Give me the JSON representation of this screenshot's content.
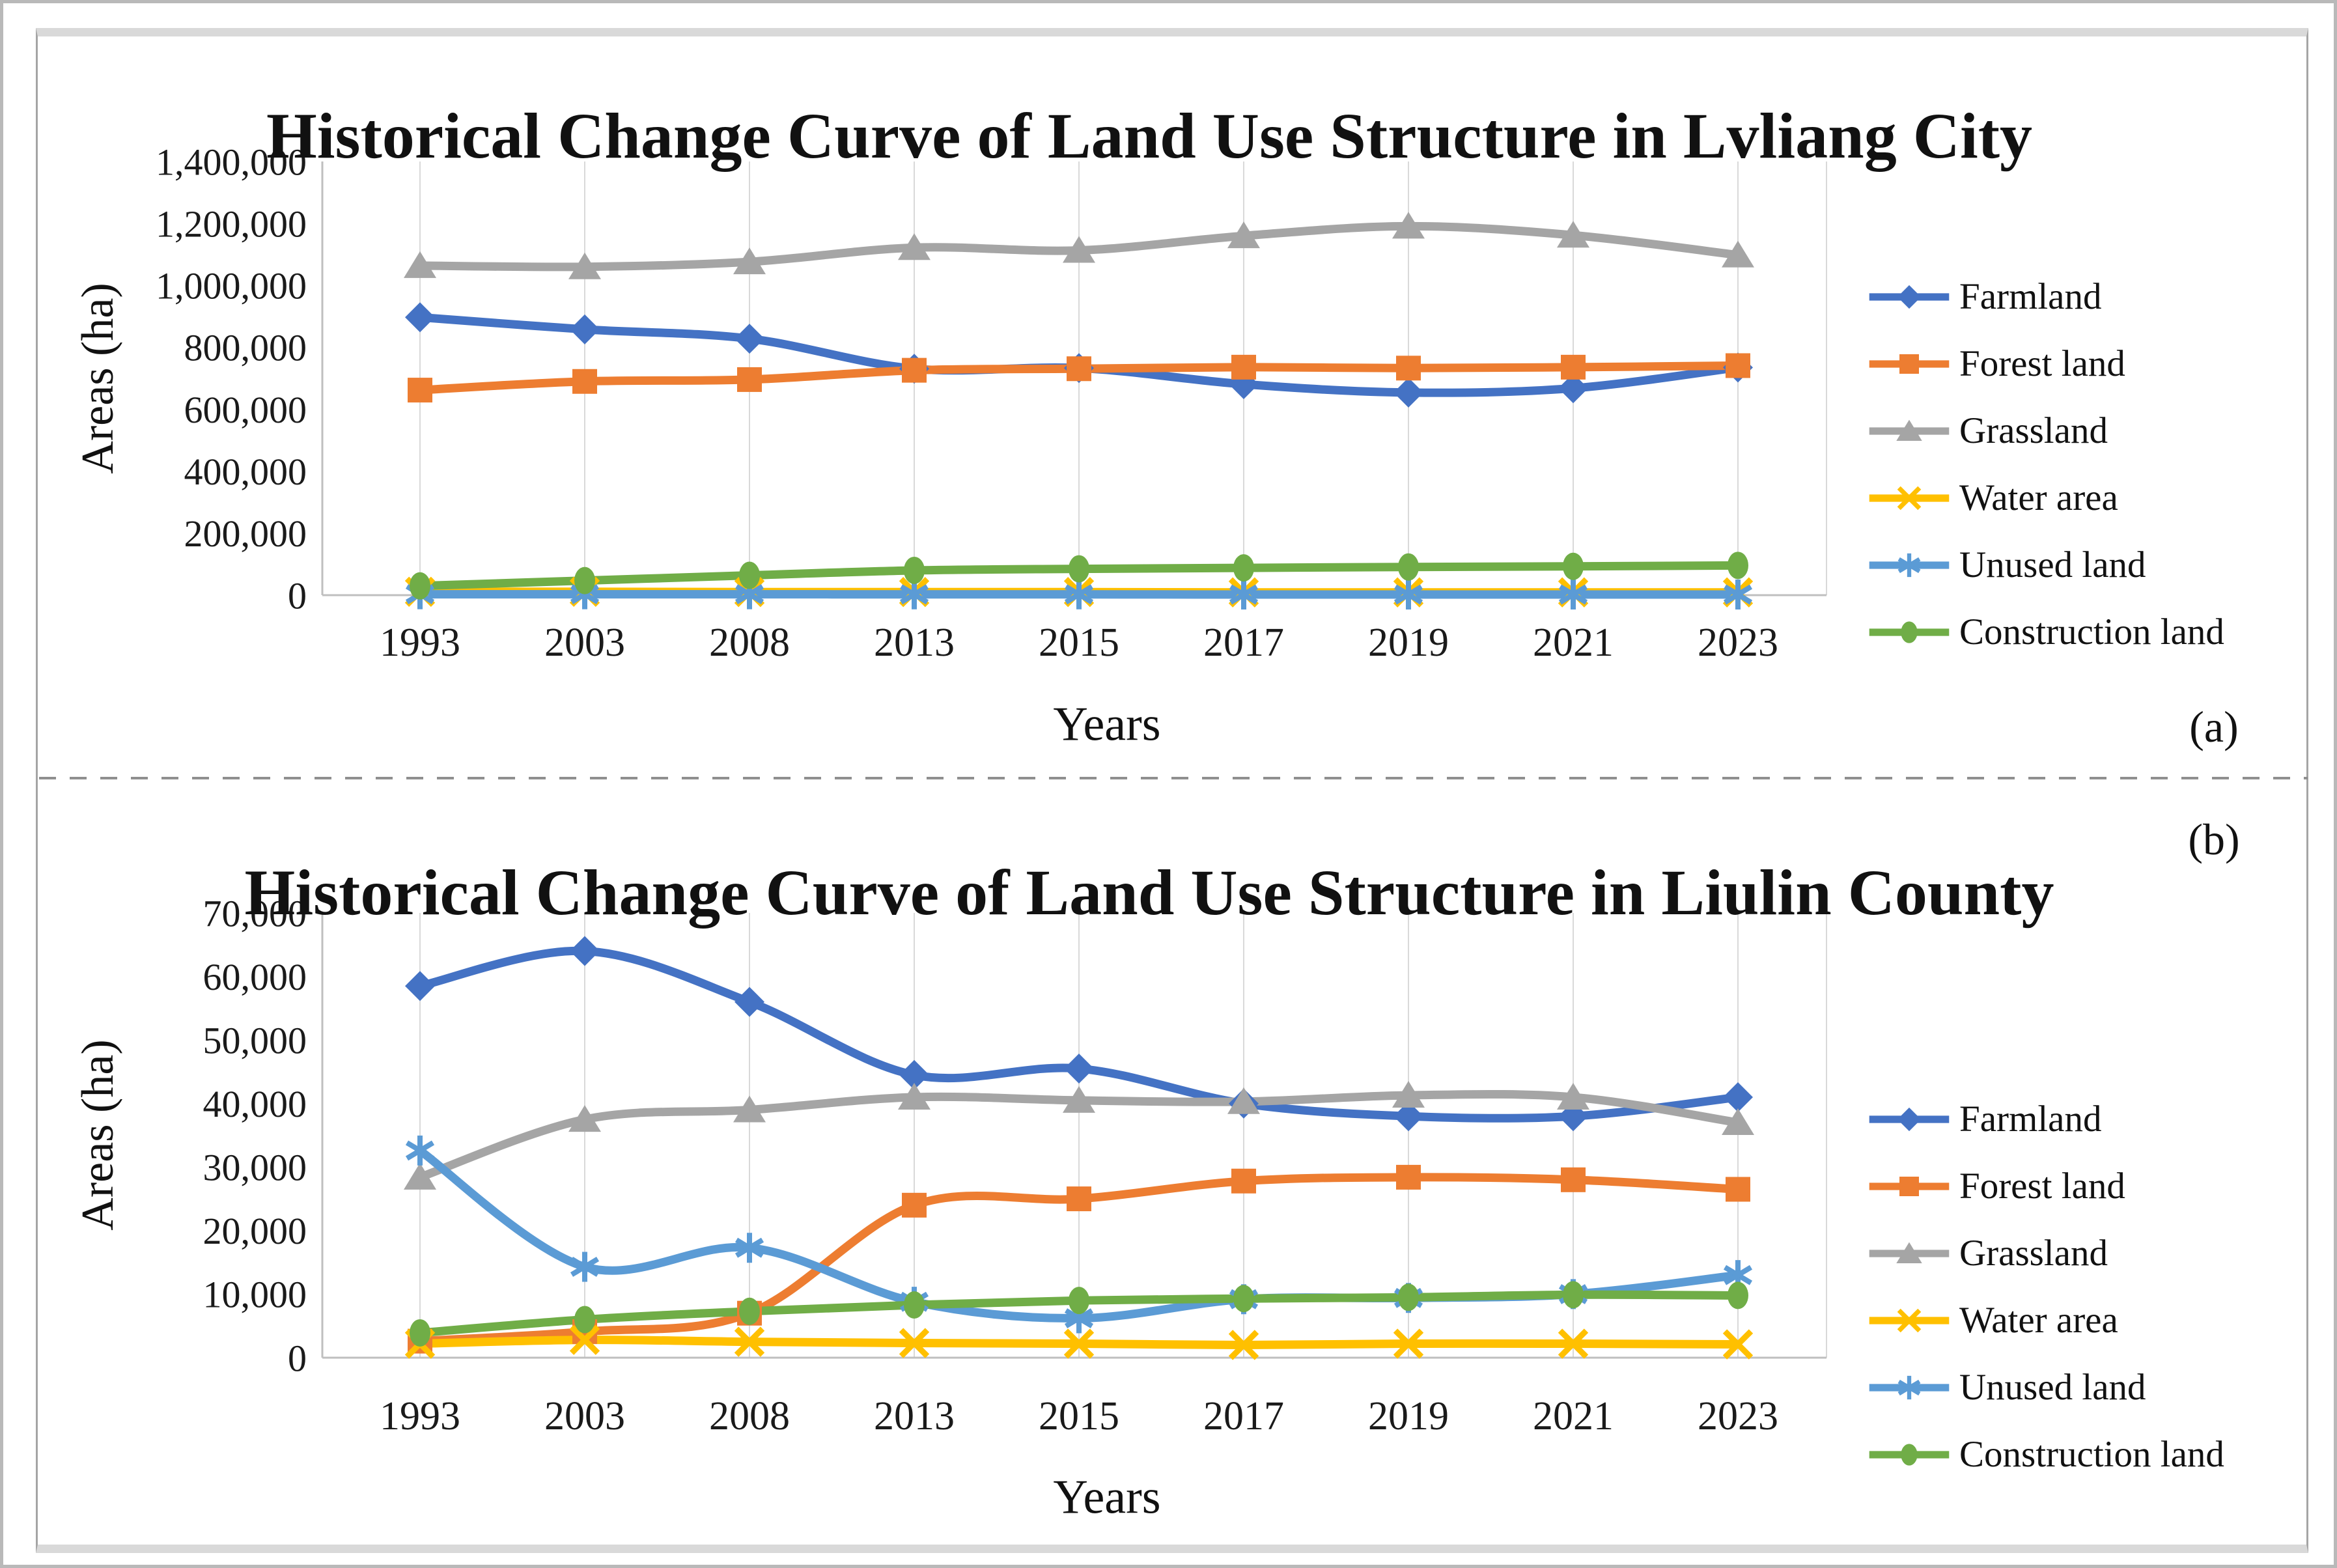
{
  "figure": {
    "panel_a_tag": "(a)",
    "panel_b_tag": "(b)"
  },
  "palette": {
    "farmland_blue": "#4472C4",
    "forest_orange": "#ED7D31",
    "grassland_gray": "#A5A5A5",
    "water_gold": "#FFC000",
    "unused_lightblue": "#5B9BD5",
    "construction_green": "#70AD47",
    "gridline_gray": "#D9D9D9",
    "axis_gray": "#BFBFBF"
  },
  "chart_data": [
    {
      "panel": "(a)",
      "type": "line",
      "title": "Historical Change Curve of Land Use Structure in Lvliang City",
      "xlabel": "Years",
      "ylabel": "Areas (ha)",
      "categories": [
        "1993",
        "2003",
        "2008",
        "2013",
        "2015",
        "2017",
        "2019",
        "2021",
        "2023"
      ],
      "ylim": [
        0,
        1400000
      ],
      "y_tick_interval": 200000,
      "y_tick_labels": [
        "0",
        "200,000",
        "400,000",
        "600,000",
        "800,000",
        "1,000,000",
        "1,200,000",
        "1,400,000"
      ],
      "grid": "vertical-only",
      "legend_position": "right",
      "smooth_lines": true,
      "series": [
        {
          "name": "Farmland",
          "color": "#4472C4",
          "marker": "diamond",
          "values": [
            897000,
            858000,
            828000,
            731000,
            733000,
            681000,
            654000,
            668000,
            735000
          ]
        },
        {
          "name": "Forest land",
          "color": "#ED7D31",
          "marker": "square",
          "values": [
            662000,
            690000,
            696000,
            726000,
            731000,
            736000,
            733000,
            736000,
            741000
          ]
        },
        {
          "name": "Grassland",
          "color": "#A5A5A5",
          "marker": "triangle",
          "values": [
            1064000,
            1060000,
            1076000,
            1122000,
            1113000,
            1160000,
            1191000,
            1162000,
            1098000
          ]
        },
        {
          "name": "Water area",
          "color": "#FFC000",
          "marker": "x",
          "values": [
            11000,
            11000,
            10000,
            10000,
            10000,
            9000,
            9000,
            9000,
            9000
          ]
        },
        {
          "name": "Unused land",
          "color": "#5B9BD5",
          "marker": "asterisk",
          "values": [
            3000,
            3000,
            3000,
            2500,
            2500,
            2000,
            2000,
            2000,
            2000
          ]
        },
        {
          "name": "Construction land",
          "color": "#70AD47",
          "marker": "circle",
          "values": [
            30000,
            47000,
            64000,
            80000,
            85000,
            88000,
            91000,
            93000,
            96000
          ]
        }
      ]
    },
    {
      "panel": "(b)",
      "type": "line",
      "title": "Historical Change Curve of Land Use Structure in Liulin County",
      "xlabel": "Years",
      "ylabel": "Areas (ha)",
      "categories": [
        "1993",
        "2003",
        "2008",
        "2013",
        "2015",
        "2017",
        "2019",
        "2021",
        "2023"
      ],
      "ylim": [
        0,
        70000
      ],
      "y_tick_interval": 10000,
      "y_tick_labels": [
        "0",
        "10,000",
        "20,000",
        "30,000",
        "40,000",
        "50,000",
        "60,000",
        "70,000"
      ],
      "grid": "vertical-only",
      "legend_position": "right",
      "smooth_lines": true,
      "series": [
        {
          "name": "Farmland",
          "color": "#4472C4",
          "marker": "diamond",
          "values": [
            58500,
            64000,
            56000,
            44500,
            45500,
            40000,
            38000,
            38000,
            41000
          ]
        },
        {
          "name": "Forest land",
          "color": "#ED7D31",
          "marker": "square",
          "values": [
            2600,
            4100,
            7000,
            24000,
            25000,
            27800,
            28400,
            28000,
            26500
          ]
        },
        {
          "name": "Grassland",
          "color": "#A5A5A5",
          "marker": "triangle",
          "values": [
            28400,
            37500,
            39000,
            41000,
            40500,
            40300,
            41300,
            41000,
            37000
          ]
        },
        {
          "name": "Water area",
          "color": "#FFC000",
          "marker": "x",
          "values": [
            2200,
            2800,
            2500,
            2300,
            2200,
            2000,
            2200,
            2200,
            2100
          ]
        },
        {
          "name": "Unused land",
          "color": "#5B9BD5",
          "marker": "asterisk",
          "values": [
            32600,
            14300,
            17300,
            8800,
            6200,
            9200,
            9400,
            10000,
            13000
          ]
        },
        {
          "name": "Construction land",
          "color": "#70AD47",
          "marker": "circle",
          "values": [
            3900,
            6000,
            7300,
            8300,
            9000,
            9300,
            9500,
            9900,
            9800
          ]
        }
      ]
    }
  ]
}
